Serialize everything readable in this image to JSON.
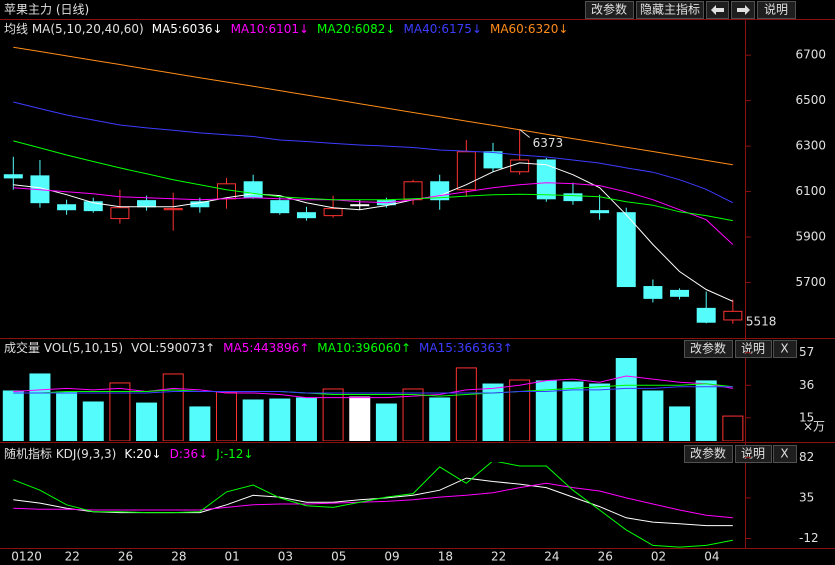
{
  "header": {
    "title": "苹果主力 (日线)",
    "buttons": [
      "改参数",
      "隐藏主指标",
      "说明"
    ]
  },
  "chart_data": [
    {
      "type": "candlestick",
      "title": "均线 MA(5,10,20,40,60)",
      "up_color": "#ff3232",
      "down_color": "#54fcfc",
      "flat_color": "#ffffff",
      "open": [
        6174,
        6169,
        6042,
        6055,
        5981,
        6060,
        6020,
        6055,
        6068,
        6143,
        6060,
        6007,
        5994,
        6042,
        6060,
        6064,
        6143,
        6108,
        6275,
        6187,
        6239,
        6090,
        6016,
        6007,
        5682,
        5665,
        5586,
        5535
      ],
      "close": [
        6160,
        6051,
        6020,
        6016,
        6029,
        6033,
        6025,
        6033,
        6134,
        6073,
        6007,
        5985,
        6025,
        6042,
        6042,
        6143,
        6064,
        6275,
        6204,
        6239,
        6068,
        6060,
        6007,
        5682,
        5630,
        5639,
        5525,
        5573
      ],
      "high": [
        6253,
        6239,
        6064,
        6073,
        6108,
        6082,
        6095,
        6073,
        6160,
        6174,
        6077,
        6033,
        6082,
        6064,
        6073,
        6152,
        6174,
        6327,
        6314,
        6373,
        6248,
        6139,
        6086,
        6029,
        5713,
        5674,
        5660,
        5625
      ],
      "low": [
        6108,
        6029,
        5998,
        6007,
        5959,
        6016,
        5928,
        6007,
        6025,
        6068,
        5998,
        5972,
        5985,
        6020,
        6029,
        6042,
        6020,
        6077,
        6187,
        6174,
        6055,
        6042,
        5976,
        5682,
        5612,
        5625,
        5520,
        5518
      ],
      "annotations": [
        6373,
        5518
      ],
      "series": [
        {
          "name": "MA5:6036↓",
          "color": "#ffffff",
          "values": [
            6130,
            6117,
            6086,
            6051,
            6033,
            6033,
            6033,
            6051,
            6073,
            6090,
            6082,
            6051,
            6029,
            6020,
            6038,
            6064,
            6082,
            6130,
            6187,
            6226,
            6218,
            6174,
            6117,
            5998,
            5867,
            5748,
            5669,
            5617
          ]
        },
        {
          "name": "MA10:6101↓",
          "color": "#ff00ff",
          "values": [
            6117,
            6108,
            6099,
            6090,
            6077,
            6073,
            6068,
            6064,
            6068,
            6073,
            6068,
            6064,
            6064,
            6055,
            6051,
            6064,
            6082,
            6099,
            6117,
            6130,
            6139,
            6135,
            6126,
            6099,
            6064,
            6020,
            5976,
            5867
          ]
        },
        {
          "name": "MA20:6082↓",
          "color": "#00ff00",
          "values": [
            6323,
            6292,
            6261,
            6232,
            6204,
            6178,
            6152,
            6130,
            6108,
            6092,
            6077,
            6070,
            6064,
            6064,
            6064,
            6068,
            6073,
            6080,
            6086,
            6088,
            6086,
            6082,
            6077,
            6055,
            6040,
            6011,
            5994,
            5972
          ]
        },
        {
          "name": "MA40:6175↓",
          "color": "#3c3cff",
          "values": [
            6494,
            6465,
            6437,
            6415,
            6393,
            6380,
            6370,
            6358,
            6350,
            6342,
            6327,
            6320,
            6312,
            6305,
            6300,
            6294,
            6283,
            6278,
            6272,
            6261,
            6252,
            6239,
            6225,
            6204,
            6185,
            6152,
            6110,
            6051
          ]
        },
        {
          "name": "MA60:6320↓",
          "color": "#ff8c1a",
          "values": [
            6735,
            6716,
            6697,
            6678,
            6659,
            6639,
            6620,
            6601,
            6582,
            6563,
            6544,
            6525,
            6506,
            6486,
            6467,
            6448,
            6429,
            6410,
            6391,
            6372,
            6352,
            6333,
            6314,
            6295,
            6276,
            6257,
            6237,
            6218
          ]
        }
      ],
      "ylim": [
        5460,
        6780
      ],
      "yticks": [
        5700,
        5900,
        6100,
        6300,
        6500,
        6700
      ]
    },
    {
      "type": "bar",
      "title": "成交量 VOL(5,10,15)",
      "buttons": [
        "改参数",
        "说明",
        "X"
      ],
      "unit_label": "×万",
      "up_color": "#ff3232",
      "down_color": "#54fcfc",
      "flat_color": "#ffffff",
      "series": [
        {
          "name": "VOL:590073↑",
          "values": [
            32.3,
            43.3,
            31.7,
            25.2,
            37.5,
            24.5,
            43.3,
            22,
            31.7,
            26.5,
            27.1,
            27.8,
            33.6,
            28.4,
            23.9,
            33.6,
            27.8,
            47.2,
            36.8,
            39.4,
            38.8,
            38.1,
            36.8,
            55.6,
            32.3,
            22,
            38.8,
            16.1
          ]
        },
        {
          "name": "MA5:443896↑",
          "color": "#ff00ff",
          "values": [
            32,
            33,
            34,
            33,
            34,
            32,
            34,
            33,
            31,
            31,
            30,
            28,
            28,
            28,
            28,
            29,
            30,
            33,
            34,
            36,
            39,
            40,
            38,
            42,
            40,
            38,
            37,
            34
          ]
        },
        {
          "name": "MA10:396060↑",
          "color": "#00ff00",
          "values": [
            31,
            31,
            32,
            32,
            32,
            32,
            33,
            32,
            32,
            32,
            32,
            31,
            30,
            30,
            30,
            30,
            29,
            30,
            31,
            32,
            33,
            34,
            35,
            36,
            36,
            36,
            37,
            35
          ]
        },
        {
          "name": "MA15:366363↑",
          "color": "#3c3cff",
          "values": [
            31,
            31,
            31,
            31,
            31,
            31,
            32,
            32,
            32,
            32,
            32,
            31,
            31,
            31,
            31,
            31,
            31,
            31,
            31,
            32,
            32,
            33,
            33,
            34,
            34,
            35,
            35,
            35
          ]
        }
      ],
      "ylim": [
        0,
        62
      ],
      "yticks": [
        15,
        36,
        57
      ]
    },
    {
      "type": "line",
      "title": "随机指标 KDJ(9,3,3)",
      "buttons": [
        "改参数",
        "说明",
        "X"
      ],
      "categories": [
        "0120",
        null,
        "22",
        null,
        "26",
        null,
        "28",
        null,
        "01",
        null,
        "03",
        null,
        "05",
        null,
        "09",
        null,
        "18",
        null,
        "22",
        null,
        "24",
        null,
        "26",
        null,
        "02",
        null,
        "04",
        null
      ],
      "series": [
        {
          "name": "K:20↓",
          "color": "#ffffff",
          "values": [
            33,
            29,
            23,
            19,
            18,
            18,
            18,
            18,
            27,
            38,
            36,
            30,
            30,
            33,
            35,
            38,
            44,
            58,
            54,
            51,
            47,
            36,
            25,
            12,
            7,
            5,
            3,
            3
          ]
        },
        {
          "name": "D:36↓",
          "color": "#ff00ff",
          "values": [
            23,
            22,
            22,
            21,
            21,
            21,
            21,
            21,
            24,
            27,
            28,
            28,
            29,
            30,
            31,
            33,
            36,
            38,
            41,
            47,
            52,
            47,
            43,
            35,
            28,
            21,
            15,
            12
          ]
        },
        {
          "name": "J:-12↓",
          "color": "#00ff00",
          "values": [
            56,
            44,
            27,
            19,
            19,
            18,
            18,
            19,
            42,
            50,
            35,
            26,
            24,
            30,
            36,
            40,
            71,
            52,
            78,
            72,
            72,
            44,
            21,
            -2,
            -20,
            -22,
            -20,
            -14
          ]
        }
      ],
      "ylim": [
        -23,
        94
      ],
      "yticks": [
        -12,
        35,
        82
      ]
    }
  ]
}
